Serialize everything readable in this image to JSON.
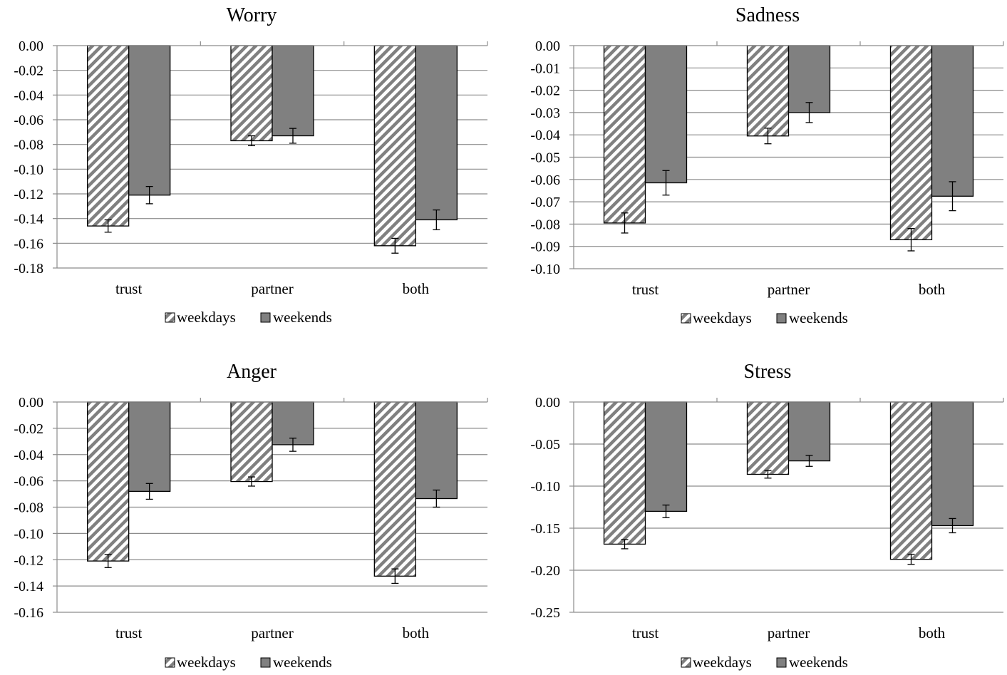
{
  "chart_data": [
    {
      "type": "bar",
      "title": "Worry",
      "categories": [
        "trust",
        "partner",
        "both"
      ],
      "series": [
        {
          "name": "weekdays",
          "values": [
            -0.146,
            -0.077,
            -0.162
          ],
          "errors": [
            0.005,
            0.004,
            0.006
          ]
        },
        {
          "name": "weekends",
          "values": [
            -0.121,
            -0.073,
            -0.141
          ],
          "errors": [
            0.007,
            0.006,
            0.008
          ]
        }
      ],
      "ylim": [
        -0.18,
        0.0
      ],
      "yticks": [
        0.0,
        -0.02,
        -0.04,
        -0.06,
        -0.08,
        -0.1,
        -0.12,
        -0.14,
        -0.16,
        -0.18
      ],
      "ytick_labels": [
        "0.00",
        "-0.02",
        "-0.04",
        "-0.06",
        "-0.08",
        "-0.10",
        "-0.12",
        "-0.14",
        "-0.16",
        "-0.18"
      ],
      "grid": true,
      "legend_position": "bottom"
    },
    {
      "type": "bar",
      "title": "Sadness",
      "categories": [
        "trust",
        "partner",
        "both"
      ],
      "series": [
        {
          "name": "weekdays",
          "values": [
            -0.0795,
            -0.0405,
            -0.087
          ],
          "errors": [
            0.0045,
            0.0035,
            0.005
          ]
        },
        {
          "name": "weekends",
          "values": [
            -0.0615,
            -0.03,
            -0.0675
          ],
          "errors": [
            0.0055,
            0.0045,
            0.0065
          ]
        }
      ],
      "ylim": [
        -0.1,
        0.0
      ],
      "yticks": [
        0.0,
        -0.01,
        -0.02,
        -0.03,
        -0.04,
        -0.05,
        -0.06,
        -0.07,
        -0.08,
        -0.09,
        -0.1
      ],
      "ytick_labels": [
        "0.00",
        "-0.01",
        "-0.02",
        "-0.03",
        "-0.04",
        "-0.05",
        "-0.06",
        "-0.07",
        "-0.08",
        "-0.09",
        "-0.10"
      ],
      "grid": true,
      "legend_position": "bottom"
    },
    {
      "type": "bar",
      "title": "Anger",
      "categories": [
        "trust",
        "partner",
        "both"
      ],
      "series": [
        {
          "name": "weekdays",
          "values": [
            -0.121,
            -0.0605,
            -0.1325
          ],
          "errors": [
            0.005,
            0.0035,
            0.0055
          ]
        },
        {
          "name": "weekends",
          "values": [
            -0.068,
            -0.0325,
            -0.0735
          ],
          "errors": [
            0.006,
            0.005,
            0.0065
          ]
        }
      ],
      "ylim": [
        -0.16,
        0.0
      ],
      "yticks": [
        0.0,
        -0.02,
        -0.04,
        -0.06,
        -0.08,
        -0.1,
        -0.12,
        -0.14,
        -0.16
      ],
      "ytick_labels": [
        "0.00",
        "-0.02",
        "-0.04",
        "-0.06",
        "-0.08",
        "-0.10",
        "-0.12",
        "-0.14",
        "-0.16"
      ],
      "grid": true,
      "legend_position": "bottom"
    },
    {
      "type": "bar",
      "title": "Stress",
      "categories": [
        "trust",
        "partner",
        "both"
      ],
      "series": [
        {
          "name": "weekdays",
          "values": [
            -0.169,
            -0.086,
            -0.187
          ],
          "errors": [
            0.0055,
            0.0045,
            0.006
          ]
        },
        {
          "name": "weekends",
          "values": [
            -0.13,
            -0.07,
            -0.147
          ],
          "errors": [
            0.0075,
            0.0065,
            0.0085
          ]
        }
      ],
      "ylim": [
        -0.25,
        0.0
      ],
      "yticks": [
        0.0,
        -0.05,
        -0.1,
        -0.15,
        -0.2,
        -0.25
      ],
      "ytick_labels": [
        "0.00",
        "-0.05",
        "-0.10",
        "-0.15",
        "-0.20",
        "-0.25"
      ],
      "grid": true,
      "legend_position": "bottom"
    }
  ],
  "colors": {
    "weekends_fill": "#808080",
    "weekdays_stripe": "#808080",
    "weekdays_background": "#ffffff",
    "gridline": "#8c8c8c",
    "bar_outline": "#000000"
  }
}
